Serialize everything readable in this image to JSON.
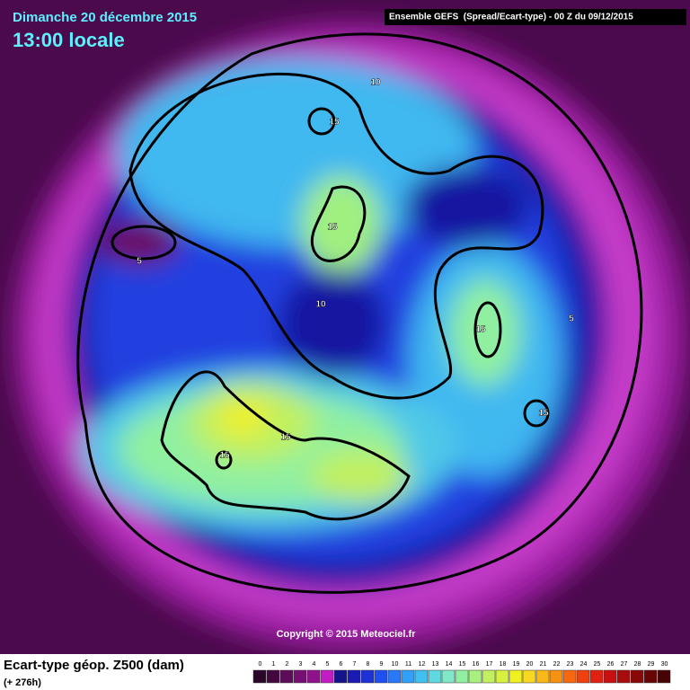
{
  "header": {
    "date": "Dimanche 20 décembre 2015",
    "time": "13:00 locale",
    "model": "Ensemble GEFS  (Spread/Ecart-type) - 00 Z du 09/12/2015"
  },
  "contour_labels": [
    10,
    15,
    15,
    5,
    10,
    15,
    5,
    15,
    15,
    15
  ],
  "copyright": "Copyright © 2015 Meteociel.fr",
  "legend": {
    "title": "Ecart-type géop. Z500 (dam)",
    "lead": "(+ 276h)",
    "ticks": [
      0,
      1,
      2,
      3,
      4,
      5,
      6,
      7,
      8,
      9,
      10,
      11,
      12,
      13,
      14,
      15,
      16,
      17,
      18,
      19,
      20,
      21,
      22,
      23,
      24,
      25,
      26,
      27,
      28,
      29,
      30
    ],
    "colors": [
      "#2a0628",
      "#43093f",
      "#5c0c58",
      "#760f72",
      "#8f128c",
      "#c21cc2",
      "#14148c",
      "#1a1ab4",
      "#1e30d8",
      "#2050f0",
      "#2878f8",
      "#30a0f8",
      "#40c0f0",
      "#60d8e0",
      "#80e8c8",
      "#90f0a0",
      "#a8f080",
      "#c0f060",
      "#d8f040",
      "#f0f020",
      "#f8d820",
      "#f8b818",
      "#f89010",
      "#f86810",
      "#f04010",
      "#e02010",
      "#c81010",
      "#a80c0c",
      "#880808",
      "#680606",
      "#480404"
    ]
  }
}
